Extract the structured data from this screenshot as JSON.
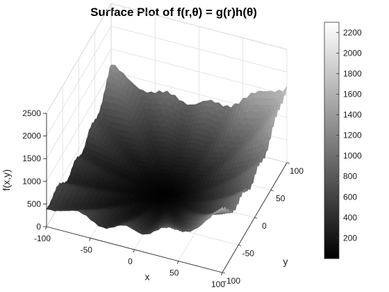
{
  "chart_data": {
    "type": "surface",
    "title": "Surface Plot of f(r,θ) = g(r)h(θ)",
    "xlabel": "x",
    "ylabel": "y",
    "zlabel": "f(x,y)",
    "xlim": [
      -100,
      100
    ],
    "ylim": [
      -100,
      100
    ],
    "zlim": [
      0,
      2500
    ],
    "x_ticks": [
      -100,
      -50,
      0,
      50,
      100
    ],
    "y_ticks": [
      -100,
      -50,
      0,
      50,
      100
    ],
    "z_ticks": [
      0,
      500,
      1000,
      1500,
      2000,
      2500
    ],
    "colorbar": {
      "colormap": "gray",
      "range": [
        0,
        2300
      ],
      "ticks": [
        200,
        400,
        600,
        800,
        1000,
        1200,
        1400,
        1600,
        1800,
        2000,
        2200
      ]
    },
    "surface_summary": {
      "min_value_near": [
        0,
        0
      ],
      "min_value": 0,
      "max_value": 2300,
      "pattern": "radially increasing bowl with angular ripples"
    },
    "grid": true
  }
}
